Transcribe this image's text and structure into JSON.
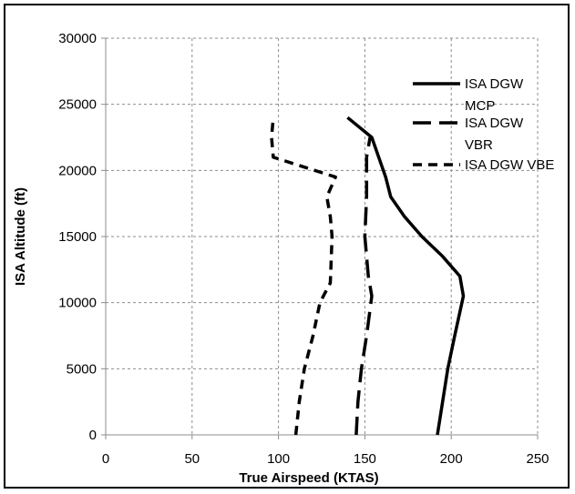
{
  "chart_data": {
    "type": "line",
    "title": "",
    "xlabel": "True Airspeed (KTAS)",
    "ylabel": "ISA Altitude (ft)",
    "xlim": [
      0,
      250
    ],
    "ylim": [
      0,
      30000
    ],
    "x_ticks": [
      0,
      50,
      100,
      150,
      200,
      250
    ],
    "y_ticks": [
      0,
      5000,
      10000,
      15000,
      20000,
      25000,
      30000
    ],
    "x_tick_labels": [
      "0",
      "50",
      "100",
      "150",
      "200",
      "250"
    ],
    "y_tick_labels": [
      "0",
      "5000",
      "10000",
      "15000",
      "20000",
      "25000",
      "30000"
    ],
    "grid": true,
    "legend_position": "top-right",
    "series": [
      {
        "name": "ISA DGW MCP",
        "style": "solid",
        "color": "#000000",
        "points": [
          [
            192,
            0
          ],
          [
            195,
            2500
          ],
          [
            198,
            5000
          ],
          [
            202,
            7500
          ],
          [
            207,
            10500
          ],
          [
            205,
            12000
          ],
          [
            195,
            13500
          ],
          [
            183,
            15000
          ],
          [
            173,
            16500
          ],
          [
            165,
            18000
          ],
          [
            162,
            19500
          ],
          [
            158,
            21000
          ],
          [
            154,
            22500
          ],
          [
            140,
            24000
          ]
        ]
      },
      {
        "name": "ISA DGW VBR",
        "style": "long-dash",
        "color": "#000000",
        "points": [
          [
            145,
            0
          ],
          [
            146,
            2500
          ],
          [
            148,
            5000
          ],
          [
            151,
            7500
          ],
          [
            154,
            10500
          ],
          [
            152,
            12000
          ],
          [
            150,
            15000
          ],
          [
            151,
            18000
          ],
          [
            151,
            21000
          ],
          [
            153,
            22500
          ]
        ]
      },
      {
        "name": "ISA DGW VBE",
        "style": "short-dash",
        "color": "#000000",
        "points": [
          [
            110,
            0
          ],
          [
            112,
            2500
          ],
          [
            115,
            5000
          ],
          [
            120,
            7500
          ],
          [
            124,
            10000
          ],
          [
            130,
            11500
          ],
          [
            131,
            15000
          ],
          [
            130,
            16500
          ],
          [
            128,
            18000
          ],
          [
            133,
            19500
          ],
          [
            97,
            21000
          ],
          [
            96,
            22500
          ],
          [
            97,
            24000
          ]
        ]
      }
    ],
    "legend_lines": [
      [
        "ISA DGW",
        "MCP"
      ],
      [
        "ISA DGW",
        "VBR"
      ],
      [
        "ISA DGW VBE"
      ]
    ]
  }
}
